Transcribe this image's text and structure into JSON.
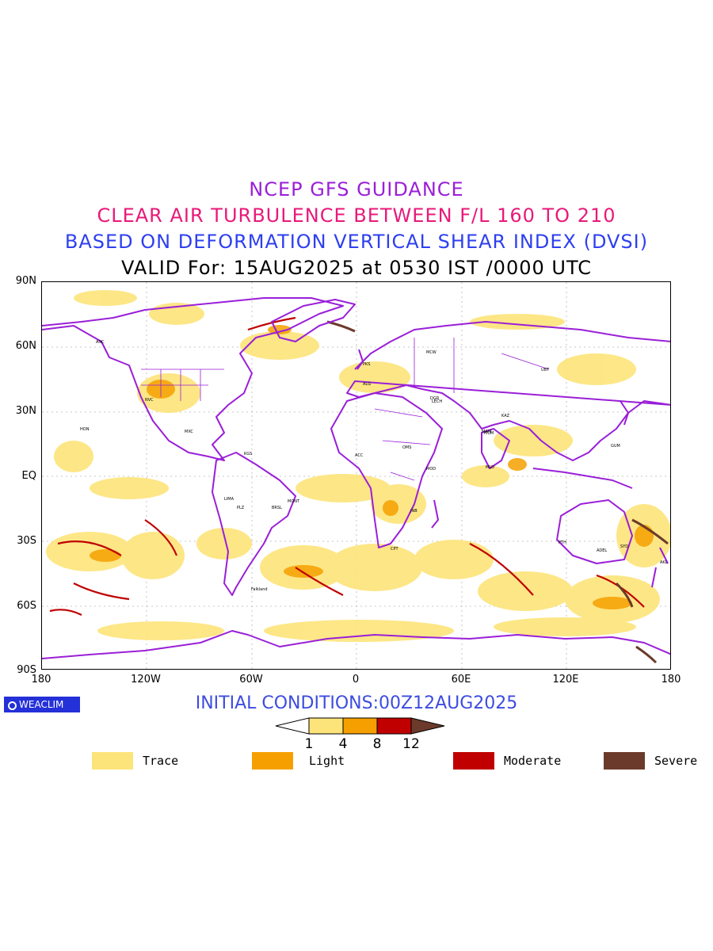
{
  "titles": {
    "line1": "NCEP GFS GUIDANCE",
    "line2": "CLEAR AIR TURBULENCE BETWEEN F/L 160 TO 210",
    "line3": "BASED ON DEFORMATION VERTICAL SHEAR INDEX (DVSI)",
    "line4": "VALID For: 15AUG2025 at 0530 IST /0000 UTC"
  },
  "map": {
    "lat_labels": [
      "90N",
      "60N",
      "30N",
      "EQ",
      "30S",
      "60S",
      "90S"
    ],
    "lon_labels": [
      "180",
      "120W",
      "60W",
      "0",
      "60E",
      "120E",
      "180"
    ],
    "coastline_color": "#9a1fd8",
    "station_labels": [
      "MCW",
      "PKS",
      "DGR",
      "UBT",
      "LECH",
      "MAM",
      "OMS",
      "MUM",
      "MLD",
      "KAZ",
      "AKL",
      "PTH",
      "SYD",
      "ADEL",
      "MOD",
      "PLZ",
      "BRSL",
      "LIMA",
      "MONT",
      "KGS",
      "ANC",
      "HON",
      "GUM",
      "NVC",
      "Falkland",
      "MXC",
      "JNB",
      "CPT",
      "ALG",
      "ACC"
    ]
  },
  "initial_conditions": "INITIAL CONDITIONS:00Z12AUG2025",
  "colorbar": {
    "ticks": [
      "1",
      "4",
      "8",
      "12"
    ],
    "colors": [
      "#fde47a",
      "#f5a000",
      "#c00000",
      "#6b3a2a"
    ]
  },
  "legend": [
    {
      "label": "Trace",
      "color": "#fde47a"
    },
    {
      "label": "Light",
      "color": "#f5a000"
    },
    {
      "label": "Moderate",
      "color": "#c00000"
    },
    {
      "label": "Severe",
      "color": "#6b3a2a"
    }
  ],
  "branding": {
    "label": "WEACLIM"
  }
}
